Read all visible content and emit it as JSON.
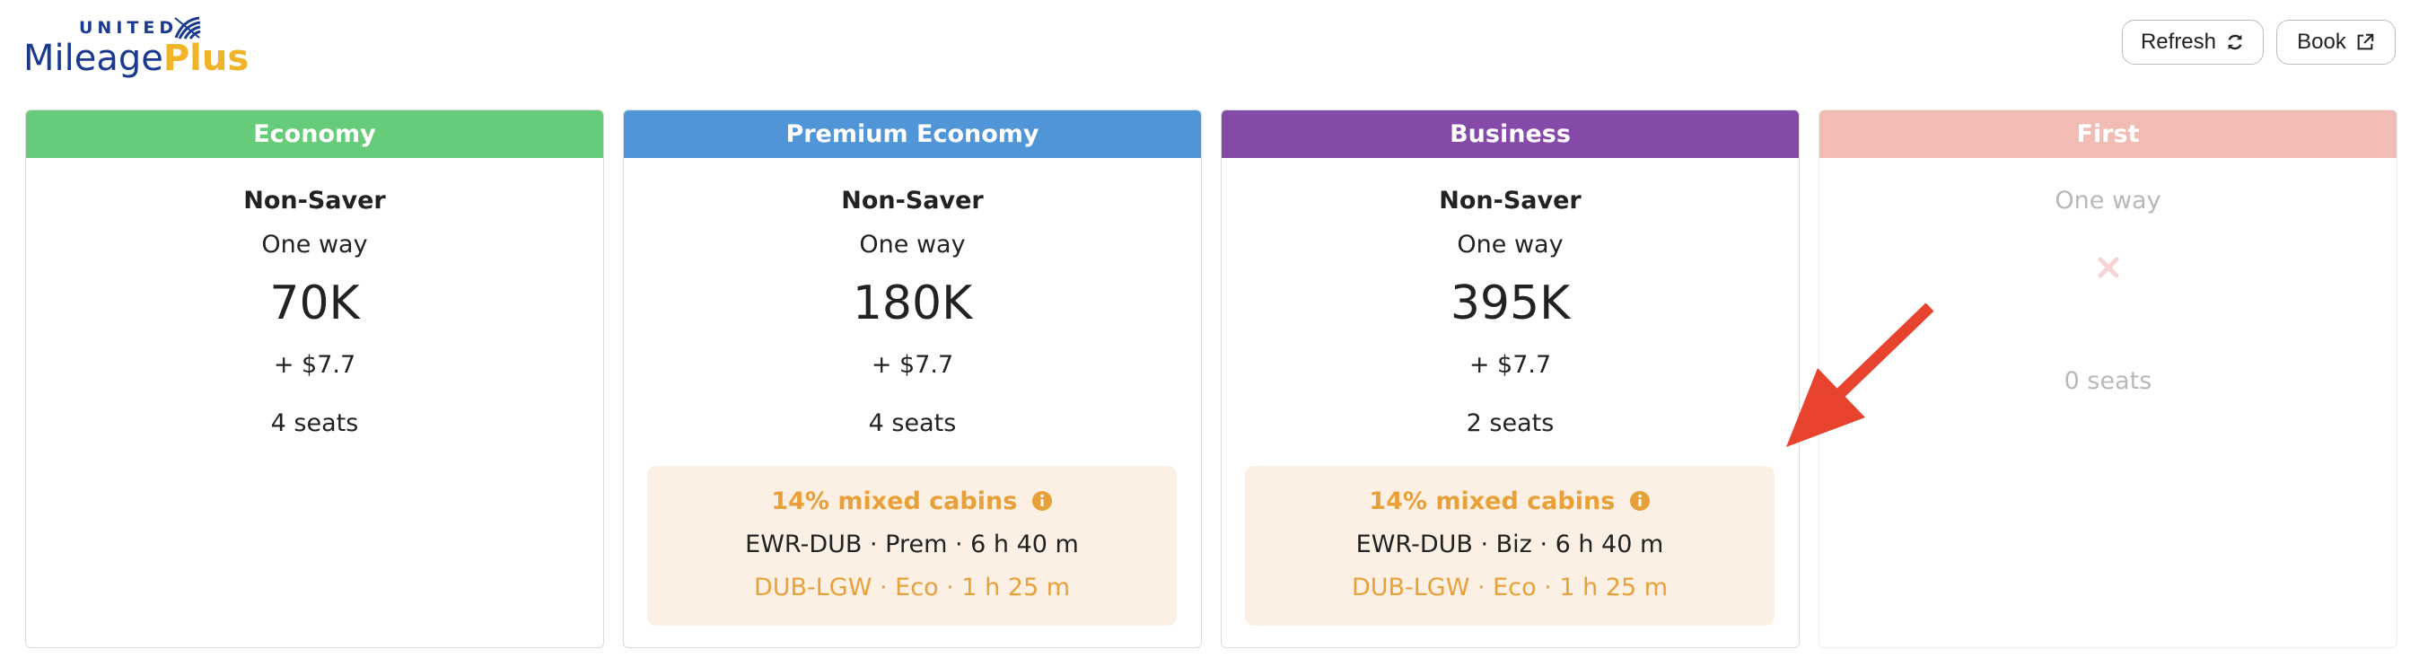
{
  "logo": {
    "united": "UNITED",
    "mileage": "Mileage",
    "plus": "Plus"
  },
  "header": {
    "refresh_label": "Refresh",
    "refresh_icon": "refresh-icon",
    "book_label": "Book",
    "book_icon": "external-link-icon"
  },
  "colors": {
    "economy": "#66cc7a",
    "premium": "#5095d7",
    "business": "#8549a8",
    "first": "#f0bcb4",
    "mixed_bg": "#fbf0e3",
    "mixed_accent": "#e8a13a",
    "arrow": "#e8432e"
  },
  "cabins": [
    {
      "name": "Economy",
      "fare_type": "Non-Saver",
      "trip": "One way",
      "miles": "70K",
      "fee": "+ $7.7",
      "seats": "4 seats"
    },
    {
      "name": "Premium Economy",
      "fare_type": "Non-Saver",
      "trip": "One way",
      "miles": "180K",
      "fee": "+ $7.7",
      "seats": "4 seats",
      "mixed": {
        "title": "14% mixed cabins",
        "segment1": "EWR-DUB · Prem · 6 h 40 m",
        "segment2": "DUB-LGW · Eco · 1 h 25 m"
      }
    },
    {
      "name": "Business",
      "fare_type": "Non-Saver",
      "trip": "One way",
      "miles": "395K",
      "fee": "+ $7.7",
      "seats": "2 seats",
      "mixed": {
        "title": "14% mixed cabins",
        "segment1": "EWR-DUB · Biz · 6 h 40 m",
        "segment2": "DUB-LGW · Eco · 1 h 25 m"
      }
    },
    {
      "name": "First",
      "trip": "One way",
      "seats": "0 seats",
      "unavailable_icon": "x-icon"
    }
  ]
}
